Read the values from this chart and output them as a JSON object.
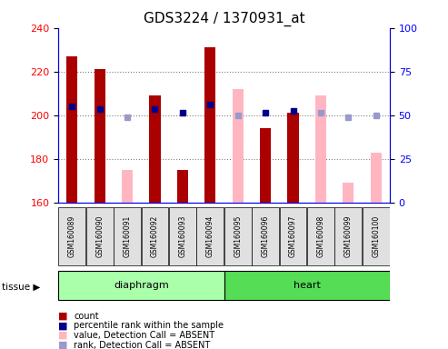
{
  "title": "GDS3224 / 1370931_at",
  "samples": [
    "GSM160089",
    "GSM160090",
    "GSM160091",
    "GSM160092",
    "GSM160093",
    "GSM160094",
    "GSM160095",
    "GSM160096",
    "GSM160097",
    "GSM160098",
    "GSM160099",
    "GSM160100"
  ],
  "count_values": [
    227,
    221,
    null,
    209,
    175,
    231,
    null,
    194,
    201,
    null,
    null,
    null
  ],
  "absent_value_values": [
    null,
    null,
    175,
    null,
    null,
    null,
    212,
    null,
    null,
    209,
    169,
    183
  ],
  "percentile_rank_present": [
    204,
    203,
    null,
    203,
    201,
    205,
    null,
    201,
    202,
    null,
    null,
    null
  ],
  "percentile_rank_absent": [
    null,
    null,
    199,
    null,
    null,
    null,
    200,
    null,
    null,
    201,
    199,
    200
  ],
  "ylim_left": [
    160,
    240
  ],
  "ylim_right": [
    0,
    100
  ],
  "yticks_left": [
    160,
    180,
    200,
    220,
    240
  ],
  "yticks_right": [
    0,
    25,
    50,
    75,
    100
  ],
  "bar_width": 0.4,
  "count_color": "#AA0000",
  "absent_value_color": "#FFB6C1",
  "present_rank_color": "#00008B",
  "absent_rank_color": "#9999CC",
  "bg_color": "#E0E0E0",
  "plot_bg": "#FFFFFF",
  "title_fontsize": 11,
  "label_fontsize": 6,
  "tick_fontsize": 8,
  "tissue_groups": [
    {
      "label": "diaphragm",
      "start": 0,
      "end": 6,
      "color": "#AAFFAA"
    },
    {
      "label": "heart",
      "start": 6,
      "end": 12,
      "color": "#55DD55"
    }
  ]
}
